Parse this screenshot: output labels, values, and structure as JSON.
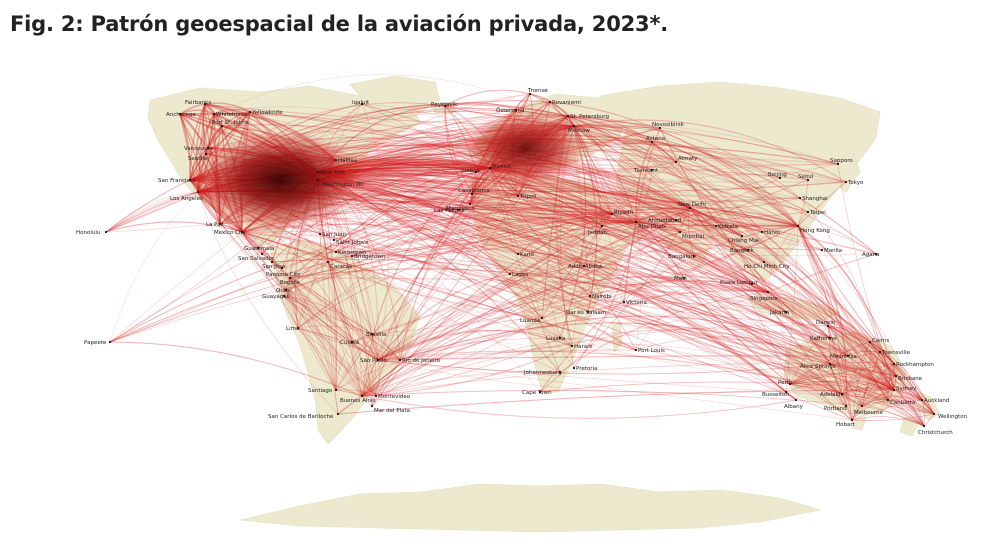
{
  "title": "Fig. 2: Patrón geoespacial de la aviación privada, 2023*.",
  "colors": {
    "land": "#ece9cf",
    "route": "#d21f1f",
    "hub": "#5a0505",
    "background": "#ffffff"
  },
  "cities": {
    "fairbanks": "Fairbanks",
    "anchorage": "Anchorage",
    "whitehorse": "Whitehorse",
    "yellowknife": "Yellowknife",
    "iqaluit": "Iqaluit",
    "reykjavik": "Reykjavík",
    "tromso": "Tromsø",
    "rovaniemi": "Rovaniemi",
    "ostersund": "Östersund",
    "st_petersburg": "St. Petersburg",
    "moscow": "Moscow",
    "novosibirsk": "Novosibirsk",
    "astana": "Astana",
    "sapporo": "Sapporo",
    "vancouver": "Vancouver",
    "seattle": "Seattle",
    "port_st_johns": "Port St. Johns",
    "halifax": "Halifax",
    "new_york": "New York",
    "washington_dc": "Washington DC",
    "san_francisco": "San Francisco",
    "los_angeles": "Los Angeles",
    "honolulu": "Honolulu",
    "la_paz": "La Paz",
    "mexico_city": "Mexico City",
    "guatemala": "Guatemala",
    "san_salvador": "San Salvador",
    "san_jose": "San José",
    "panama_city": "Panama City",
    "san_juan": "San Juan",
    "saint_johns": "Saint John's",
    "kingstown": "Kingstown",
    "bridgetown": "Bridgetown",
    "caracas": "Caracas",
    "bogota": "Bogotá",
    "quito": "Quito",
    "guayaquil": "Guayaquil",
    "lima": "Lima",
    "papeete": "Papeete",
    "brasilia": "Brasília",
    "cuiaba": "Cuiabá",
    "sao_paulo": "São Paulo",
    "rio_de_janeiro": "Rio de Janeiro",
    "santiago": "Santiago",
    "buenos_aires": "Buenos Aires",
    "montevideo": "Montevideo",
    "mar_del_plata": "Mar del Plata",
    "bariloche": "San Carlos de Bariloche",
    "las_palmas": "Las Palmas",
    "casablanca": "Casablanca",
    "marrakech": "Marrakech",
    "lisbon": "Lisboa",
    "madrid": "Madrid",
    "tripoli": "Tripoli",
    "riyadh": "Riyadh",
    "jeddah": "Jeddah",
    "abu_dhabi": "Abu Dhabi",
    "kano": "Kano",
    "lagos": "Lagos",
    "addis_ababa": "Addis Ababa",
    "nairobi": "Nairobi",
    "victoria": "Victoria",
    "luanda": "Luanda",
    "dar_es_salaam": "Dar es Salaam",
    "lusaka": "Lusaka",
    "harare": "Harare",
    "johannesburg": "Johannesburg",
    "pretoria": "Pretoria",
    "cape_town": "Cape Town",
    "port_louis": "Port Louis",
    "tashkent": "Tashkent",
    "almaty": "Almaty",
    "ahmedabad": "Ahmedabad",
    "new_delhi": "New Delhi",
    "mumbai": "Mumbai",
    "kolkata": "Kolkata",
    "bangalore": "Bangalore",
    "male": "Malé",
    "beijing": "Beijing",
    "seoul": "Seoul",
    "tokyo": "Tokyo",
    "shanghai": "Shanghai",
    "taipei": "Taipei",
    "hong_kong": "Hong Kong",
    "chiang_mai": "Chiang Mai",
    "hanoi": "Hanoi",
    "bangkok": "Bangkok",
    "ho_chi_minh": "Ho Chi Minh City",
    "manila": "Manila",
    "agana": "Agana",
    "kuala_lumpur": "Kuala Lumpur",
    "singapore": "Singapore",
    "jakarta": "Jakarta",
    "darwin": "Darwin",
    "katherine": "Katherine",
    "mount_isa": "Mount Isa",
    "cairns": "Cairns",
    "townsville": "Townsville",
    "rockhampton": "Rockhampton",
    "alice_springs": "Alice Springs",
    "brisbane": "Brisbane",
    "perth": "Perth",
    "busselton": "Busselton",
    "albany": "Albany",
    "adelaide": "Adelaide",
    "sydney": "Sydney",
    "canberra": "Canberra",
    "melbourne": "Melbourne",
    "portland": "Portland",
    "hobart": "Hobart",
    "auckland": "Auckland",
    "wellington": "Wellington",
    "christchurch": "Christchurch"
  }
}
